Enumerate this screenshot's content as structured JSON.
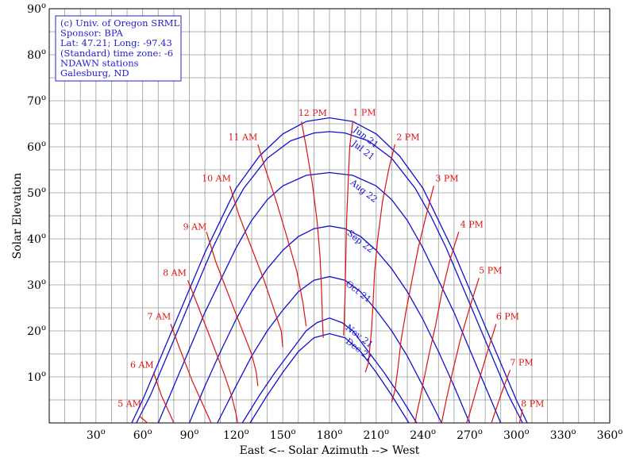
{
  "chart_data": {
    "type": "line",
    "title": "",
    "xlabel": "East <-- Solar Azimuth --> West",
    "ylabel": "Solar Elevation",
    "xlim": [
      0,
      360
    ],
    "ylim": [
      0,
      90
    ],
    "x_ticks": [
      30,
      60,
      90,
      120,
      150,
      180,
      210,
      240,
      270,
      300,
      330,
      360
    ],
    "y_ticks": [
      10,
      20,
      30,
      40,
      50,
      60,
      70,
      80,
      90
    ],
    "tick_suffix": "o",
    "grid": true,
    "info_box": [
      "(c) Univ. of Oregon SRML",
      "Sponsor: BPA",
      "Lat: 47.21; Long: -97.43",
      "(Standard) time zone: -6",
      "NDAWN stations",
      "Galesburg, ND"
    ],
    "series": [
      {
        "name": "Jun 21",
        "kind": "date",
        "points": [
          [
            53,
            0
          ],
          [
            60,
            5
          ],
          [
            70,
            13
          ],
          [
            80,
            21
          ],
          [
            90,
            29
          ],
          [
            100,
            37
          ],
          [
            110,
            44
          ],
          [
            120,
            51
          ],
          [
            135,
            58
          ],
          [
            150,
            62.8
          ],
          [
            165,
            65.5
          ],
          [
            180,
            66.3
          ],
          [
            195,
            65.5
          ],
          [
            210,
            62.8
          ],
          [
            225,
            58
          ],
          [
            240,
            51
          ],
          [
            250,
            44
          ],
          [
            260,
            37
          ],
          [
            270,
            29
          ],
          [
            280,
            21
          ],
          [
            290,
            13
          ],
          [
            300,
            5
          ],
          [
            307,
            0
          ]
        ]
      },
      {
        "name": "Jul 21",
        "kind": "date",
        "points": [
          [
            56,
            0
          ],
          [
            65,
            6
          ],
          [
            75,
            14
          ],
          [
            85,
            22
          ],
          [
            95,
            30
          ],
          [
            105,
            38
          ],
          [
            115,
            45
          ],
          [
            125,
            51
          ],
          [
            140,
            57.5
          ],
          [
            155,
            61.3
          ],
          [
            170,
            63
          ],
          [
            180,
            63.3
          ],
          [
            190,
            63
          ],
          [
            205,
            61.3
          ],
          [
            220,
            57.5
          ],
          [
            235,
            51
          ],
          [
            245,
            45
          ],
          [
            255,
            38
          ],
          [
            265,
            30
          ],
          [
            275,
            22
          ],
          [
            285,
            14
          ],
          [
            295,
            6
          ],
          [
            304,
            0
          ]
        ]
      },
      {
        "name": "Aug 22",
        "kind": "date",
        "points": [
          [
            70,
            0
          ],
          [
            80,
            8
          ],
          [
            90,
            16
          ],
          [
            100,
            24
          ],
          [
            110,
            31
          ],
          [
            120,
            38
          ],
          [
            130,
            44
          ],
          [
            140,
            48.5
          ],
          [
            150,
            51.5
          ],
          [
            165,
            53.8
          ],
          [
            180,
            54.4
          ],
          [
            195,
            53.8
          ],
          [
            210,
            51.5
          ],
          [
            220,
            48.5
          ],
          [
            230,
            44
          ],
          [
            240,
            38
          ],
          [
            250,
            31
          ],
          [
            260,
            24
          ],
          [
            270,
            16
          ],
          [
            280,
            8
          ],
          [
            290,
            0
          ]
        ]
      },
      {
        "name": "Sep 22",
        "kind": "date",
        "points": [
          [
            90,
            0
          ],
          [
            100,
            8
          ],
          [
            110,
            15.5
          ],
          [
            120,
            22.5
          ],
          [
            130,
            28.5
          ],
          [
            140,
            33.5
          ],
          [
            150,
            37.5
          ],
          [
            160,
            40.5
          ],
          [
            170,
            42.2
          ],
          [
            180,
            42.8
          ],
          [
            190,
            42.2
          ],
          [
            200,
            40.5
          ],
          [
            210,
            37.5
          ],
          [
            220,
            33.5
          ],
          [
            230,
            28.5
          ],
          [
            240,
            22.5
          ],
          [
            250,
            15.5
          ],
          [
            260,
            8
          ],
          [
            270,
            0
          ]
        ]
      },
      {
        "name": "Oct 21",
        "kind": "date",
        "points": [
          [
            108,
            0
          ],
          [
            120,
            8
          ],
          [
            130,
            14.5
          ],
          [
            140,
            20
          ],
          [
            150,
            24.5
          ],
          [
            160,
            28.5
          ],
          [
            170,
            31
          ],
          [
            180,
            31.8
          ],
          [
            190,
            31
          ],
          [
            200,
            28.5
          ],
          [
            210,
            24.5
          ],
          [
            220,
            20
          ],
          [
            230,
            14.5
          ],
          [
            240,
            8
          ],
          [
            252,
            0
          ]
        ]
      },
      {
        "name": "Nov 21",
        "kind": "date",
        "points": [
          [
            124,
            0
          ],
          [
            135,
            6
          ],
          [
            145,
            11
          ],
          [
            155,
            15.5
          ],
          [
            165,
            20
          ],
          [
            172,
            21.8
          ],
          [
            180,
            22.8
          ],
          [
            188,
            21.8
          ],
          [
            195,
            20
          ],
          [
            205,
            15.5
          ],
          [
            215,
            11
          ],
          [
            225,
            6
          ],
          [
            236,
            0
          ]
        ]
      },
      {
        "name": "Dec 21",
        "kind": "date",
        "points": [
          [
            129,
            0
          ],
          [
            140,
            6
          ],
          [
            150,
            11
          ],
          [
            160,
            15.5
          ],
          [
            170,
            18.5
          ],
          [
            180,
            19.4
          ],
          [
            190,
            18.5
          ],
          [
            200,
            15.5
          ],
          [
            210,
            11
          ],
          [
            220,
            6
          ],
          [
            231,
            0
          ]
        ]
      },
      {
        "name": "5 AM",
        "kind": "hour",
        "points": [
          [
            58,
            1.5
          ],
          [
            63,
            0
          ]
        ]
      },
      {
        "name": "6 AM",
        "kind": "hour",
        "points": [
          [
            67,
            11
          ],
          [
            72,
            6
          ],
          [
            80,
            0
          ]
        ]
      },
      {
        "name": "7 AM",
        "kind": "hour",
        "points": [
          [
            78,
            21.5
          ],
          [
            84,
            16
          ],
          [
            92,
            9
          ],
          [
            100,
            3
          ],
          [
            104,
            0
          ]
        ]
      },
      {
        "name": "8 AM",
        "kind": "hour",
        "points": [
          [
            89,
            31
          ],
          [
            96,
            25
          ],
          [
            104,
            18
          ],
          [
            112,
            11
          ],
          [
            117,
            6
          ],
          [
            120,
            2
          ],
          [
            121,
            0
          ]
        ]
      },
      {
        "name": "9 AM",
        "kind": "hour",
        "points": [
          [
            101,
            41.5
          ],
          [
            107,
            35
          ],
          [
            115,
            28
          ],
          [
            123,
            21
          ],
          [
            130,
            15
          ],
          [
            133,
            11
          ],
          [
            134,
            8
          ]
        ]
      },
      {
        "name": "10 AM",
        "kind": "hour",
        "points": [
          [
            116,
            51.5
          ],
          [
            122,
            45
          ],
          [
            130,
            38
          ],
          [
            138,
            31
          ],
          [
            145,
            24
          ],
          [
            149,
            20
          ],
          [
            150,
            16.5
          ]
        ]
      },
      {
        "name": "11 AM",
        "kind": "hour",
        "points": [
          [
            134,
            60.5
          ],
          [
            139,
            55
          ],
          [
            146,
            48
          ],
          [
            153,
            40
          ],
          [
            159,
            33
          ],
          [
            163,
            26
          ],
          [
            165,
            21
          ]
        ]
      },
      {
        "name": "12 PM",
        "kind": "hour",
        "points": [
          [
            162,
            65.5
          ],
          [
            165,
            60
          ],
          [
            169,
            52
          ],
          [
            172,
            44
          ],
          [
            174,
            36
          ],
          [
            175,
            28
          ],
          [
            175.5,
            22
          ],
          [
            176,
            18.5
          ]
        ]
      },
      {
        "name": "1 PM",
        "kind": "hour",
        "points": [
          [
            195,
            65.5
          ],
          [
            193,
            60
          ],
          [
            192,
            52
          ],
          [
            191,
            44
          ],
          [
            190.5,
            36
          ],
          [
            190,
            28
          ],
          [
            189.5,
            22
          ],
          [
            189,
            19
          ]
        ]
      },
      {
        "name": "2 PM",
        "kind": "hour",
        "points": [
          [
            222,
            60.5
          ],
          [
            218,
            55
          ],
          [
            214,
            48
          ],
          [
            211,
            40
          ],
          [
            209,
            33
          ],
          [
            208,
            26
          ],
          [
            207,
            20
          ],
          [
            205,
            13
          ],
          [
            203,
            11
          ]
        ]
      },
      {
        "name": "3 PM",
        "kind": "hour",
        "points": [
          [
            247,
            51.5
          ],
          [
            242,
            45
          ],
          [
            237,
            38
          ],
          [
            233,
            31
          ],
          [
            229,
            24
          ],
          [
            226,
            18
          ],
          [
            224,
            12
          ],
          [
            222,
            7
          ],
          [
            220,
            4.5
          ]
        ]
      },
      {
        "name": "4 PM",
        "kind": "hour",
        "points": [
          [
            263,
            41.5
          ],
          [
            257,
            35
          ],
          [
            252,
            28
          ],
          [
            248,
            21
          ],
          [
            244,
            15
          ],
          [
            241,
            10
          ],
          [
            238,
            5
          ],
          [
            236,
            2
          ],
          [
            235,
            0
          ]
        ]
      },
      {
        "name": "5 PM",
        "kind": "hour",
        "points": [
          [
            276,
            31.5
          ],
          [
            270,
            25
          ],
          [
            264,
            18
          ],
          [
            259,
            11
          ],
          [
            255,
            5
          ],
          [
            252,
            0
          ]
        ]
      },
      {
        "name": "6 PM",
        "kind": "hour",
        "points": [
          [
            287,
            21.5
          ],
          [
            281,
            15
          ],
          [
            275,
            8
          ],
          [
            270,
            2
          ],
          [
            268,
            0
          ]
        ]
      },
      {
        "name": "7 PM",
        "kind": "hour",
        "points": [
          [
            296,
            11.5
          ],
          [
            290,
            6
          ],
          [
            284,
            0
          ]
        ]
      },
      {
        "name": "8 PM",
        "kind": "hour",
        "points": [
          [
            304,
            3
          ],
          [
            302,
            0
          ]
        ]
      }
    ],
    "date_labels": [
      {
        "text": "Jun 21",
        "x": 195,
        "y": 63.5
      },
      {
        "text": "Jul 21",
        "x": 194,
        "y": 60.5
      },
      {
        "text": "Aug 22",
        "x": 193,
        "y": 52
      },
      {
        "text": "Sep 22",
        "x": 191,
        "y": 41
      },
      {
        "text": "Oct 21",
        "x": 190,
        "y": 30
      },
      {
        "text": "Nov 21",
        "x": 190,
        "y": 20.5
      },
      {
        "text": "Dec 21",
        "x": 190,
        "y": 17.5
      }
    ],
    "hour_labels": [
      {
        "text": "5 AM",
        "x": 44,
        "y": 3.5
      },
      {
        "text": "6 AM",
        "x": 52,
        "y": 12
      },
      {
        "text": "7 AM",
        "x": 63,
        "y": 22.5
      },
      {
        "text": "8 AM",
        "x": 73,
        "y": 32
      },
      {
        "text": "9 AM",
        "x": 86,
        "y": 42
      },
      {
        "text": "10 AM",
        "x": 98,
        "y": 52.5
      },
      {
        "text": "11 AM",
        "x": 115,
        "y": 61.5
      },
      {
        "text": "12 PM",
        "x": 160,
        "y": 66.7
      },
      {
        "text": "1 PM",
        "x": 195,
        "y": 66.8
      },
      {
        "text": "2 PM",
        "x": 223,
        "y": 61.5
      },
      {
        "text": "3 PM",
        "x": 248,
        "y": 52.5
      },
      {
        "text": "4 PM",
        "x": 264,
        "y": 42.5
      },
      {
        "text": "5 PM",
        "x": 276,
        "y": 32.5
      },
      {
        "text": "6 PM",
        "x": 287,
        "y": 22.5
      },
      {
        "text": "7 PM",
        "x": 296,
        "y": 12.5
      },
      {
        "text": "8 PM",
        "x": 303,
        "y": 3.5
      }
    ]
  }
}
